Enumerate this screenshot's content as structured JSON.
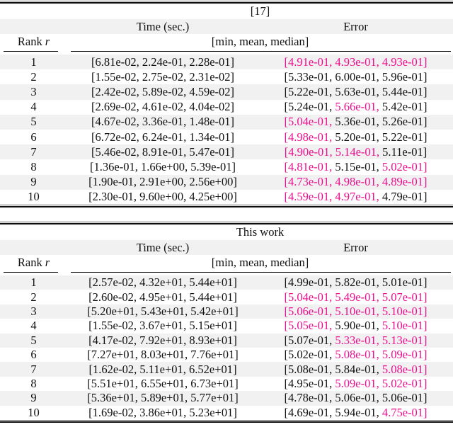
{
  "colors": {
    "highlight": "#ed0e8f",
    "stripe": "#f1f1f1",
    "text": "#111111",
    "rule": "#0a0a0a"
  },
  "header": {
    "rank_label": "Rank",
    "rank_var": "r",
    "time_label": "Time (sec.)",
    "error_label": "Error",
    "stats_label": "[min, mean, median]"
  },
  "tables": [
    {
      "title": "[17]",
      "rows": [
        {
          "rank": "1",
          "time": [
            "6.81e-02",
            "2.24e-01",
            "2.28e-01"
          ],
          "error": [
            "4.91e-01",
            "4.93e-01",
            "4.93e-01"
          ],
          "error_highlight": [
            true,
            true,
            true
          ]
        },
        {
          "rank": "2",
          "time": [
            "1.55e-02",
            "2.75e-02",
            "2.31e-02"
          ],
          "error": [
            "5.33e-01",
            "6.00e-01",
            "5.96e-01"
          ],
          "error_highlight": [
            false,
            false,
            false
          ]
        },
        {
          "rank": "3",
          "time": [
            "2.42e-02",
            "5.89e-02",
            "4.59e-02"
          ],
          "error": [
            "5.22e-01",
            "5.63e-01",
            "5.44e-01"
          ],
          "error_highlight": [
            false,
            false,
            false
          ]
        },
        {
          "rank": "4",
          "time": [
            "2.69e-02",
            "4.61e-02",
            "4.04e-02"
          ],
          "error": [
            "5.24e-01",
            "5.66e-01",
            "5.42e-01"
          ],
          "error_highlight": [
            false,
            true,
            false
          ]
        },
        {
          "rank": "5",
          "time": [
            "4.67e-02",
            "3.36e-01",
            "1.48e-01"
          ],
          "error": [
            "5.04e-01",
            "5.36e-01",
            "5.26e-01"
          ],
          "error_highlight": [
            true,
            false,
            false
          ]
        },
        {
          "rank": "6",
          "time": [
            "6.72e-02",
            "6.24e-01",
            "1.34e-01"
          ],
          "error": [
            "4.98e-01",
            "5.20e-01",
            "5.22e-01"
          ],
          "error_highlight": [
            true,
            false,
            false
          ]
        },
        {
          "rank": "7",
          "time": [
            "5.46e-02",
            "8.91e-01",
            "5.47e-01"
          ],
          "error": [
            "4.90e-01",
            "5.14e-01",
            "5.11e-01"
          ],
          "error_highlight": [
            true,
            true,
            false
          ]
        },
        {
          "rank": "8",
          "time": [
            "1.36e-01",
            "1.66e+00",
            "5.39e-01"
          ],
          "error": [
            "4.81e-01",
            "5.15e-01",
            "5.02e-01"
          ],
          "error_highlight": [
            true,
            false,
            true
          ]
        },
        {
          "rank": "9",
          "time": [
            "1.90e-01",
            "2.91e+00",
            "2.56e+00"
          ],
          "error": [
            "4.73e-01",
            "4.98e-01",
            "4.89e-01"
          ],
          "error_highlight": [
            true,
            true,
            true
          ]
        },
        {
          "rank": "10",
          "time": [
            "2.30e-01",
            "9.60e+00",
            "4.25e+00"
          ],
          "error": [
            "4.59e-01",
            "4.97e-01",
            "4.79e-01"
          ],
          "error_highlight": [
            true,
            true,
            false
          ]
        }
      ]
    },
    {
      "title": "This work",
      "rows": [
        {
          "rank": "1",
          "time": [
            "2.57e-02",
            "4.32e+01",
            "5.44e+01"
          ],
          "error": [
            "4.99e-01",
            "5.82e-01",
            "5.01e-01"
          ],
          "error_highlight": [
            false,
            false,
            false
          ]
        },
        {
          "rank": "2",
          "time": [
            "2.60e-02",
            "4.95e+01",
            "5.44e+01"
          ],
          "error": [
            "5.04e-01",
            "5.49e-01",
            "5.07e-01"
          ],
          "error_highlight": [
            true,
            true,
            true
          ]
        },
        {
          "rank": "3",
          "time": [
            "5.20e+01",
            "5.43e+01",
            "5.42e+01"
          ],
          "error": [
            "5.06e-01",
            "5.10e-01",
            "5.10e-01"
          ],
          "error_highlight": [
            true,
            true,
            true
          ]
        },
        {
          "rank": "4",
          "time": [
            "1.55e-02",
            "3.67e+01",
            "5.15e+01"
          ],
          "error": [
            "5.05e-01",
            "5.90e-01",
            "5.10e-01"
          ],
          "error_highlight": [
            true,
            false,
            true
          ]
        },
        {
          "rank": "5",
          "time": [
            "4.17e-02",
            "7.92e+01",
            "8.93e+01"
          ],
          "error": [
            "5.07e-01",
            "5.33e-01",
            "5.13e-01"
          ],
          "error_highlight": [
            false,
            true,
            true
          ]
        },
        {
          "rank": "6",
          "time": [
            "7.27e+01",
            "8.03e+01",
            "7.76e+01"
          ],
          "error": [
            "5.02e-01",
            "5.08e-01",
            "5.09e-01"
          ],
          "error_highlight": [
            false,
            true,
            true
          ]
        },
        {
          "rank": "7",
          "time": [
            "1.62e-02",
            "5.11e+01",
            "6.52e+01"
          ],
          "error": [
            "5.08e-01",
            "5.84e-01",
            "5.08e-01"
          ],
          "error_highlight": [
            false,
            false,
            true
          ]
        },
        {
          "rank": "8",
          "time": [
            "5.51e+01",
            "6.55e+01",
            "6.73e+01"
          ],
          "error": [
            "4.95e-01",
            "5.09e-01",
            "5.02e-01"
          ],
          "error_highlight": [
            false,
            true,
            true
          ]
        },
        {
          "rank": "9",
          "time": [
            "5.36e+01",
            "5.89e+01",
            "5.77e+01"
          ],
          "error": [
            "4.78e-01",
            "5.06e-01",
            "5.06e-01"
          ],
          "error_highlight": [
            false,
            false,
            false
          ]
        },
        {
          "rank": "10",
          "time": [
            "1.69e-02",
            "3.86e+01",
            "5.23e+01"
          ],
          "error": [
            "4.69e-01",
            "5.94e-01",
            "4.75e-01"
          ],
          "error_highlight": [
            false,
            false,
            true
          ]
        }
      ]
    }
  ]
}
